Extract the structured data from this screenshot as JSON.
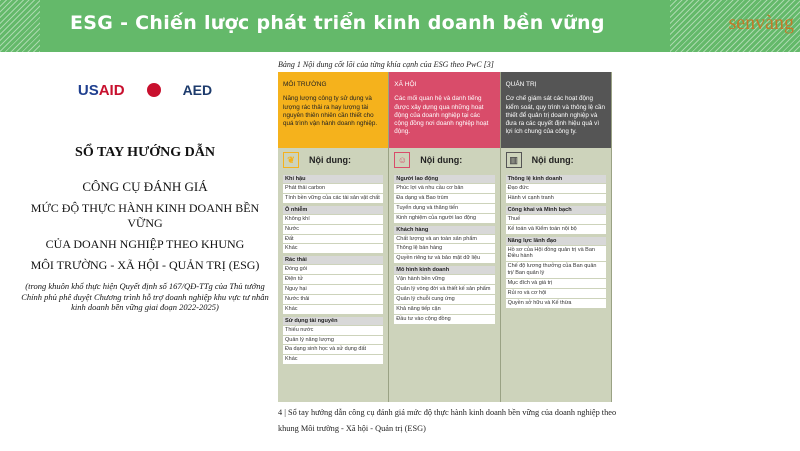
{
  "header": {
    "title": "ESG - Chiến lược phát triển kinh doanh bền vững",
    "logo": "senvàng",
    "color": "#64b96a"
  },
  "cover": {
    "logos": [
      "USAID",
      "BỘ KẾ HOẠCH VÀ ĐẦU TƯ",
      "AED"
    ],
    "title": "SỔ TAY HƯỚNG DẪN",
    "line1": "CÔNG CỤ ĐÁNH GIÁ",
    "line2": "MỨC ĐỘ THỰC HÀNH KINH DOANH BỀN VỮNG",
    "line3": "CỦA DOANH NGHIỆP THEO KHUNG",
    "line4": "MÔI TRƯỜNG - XÃ HỘI - QUẢN TRỊ (ESG)",
    "note": "(trong khuôn khổ thực hiện Quyết định số 167/QĐ-TTg của Thủ tướng Chính phủ phê duyệt Chương trình hỗ trợ doanh nghiệp khu vực tư nhân kinh doanh bền vững giai đoạn 2022-2025)"
  },
  "caption": "Bảng 1  Nội dung cốt lõi của từng khía cạnh của ESG theo PwC [3]",
  "columns": [
    {
      "title": "MÔI TRƯỜNG",
      "desc": "Năng lượng công ty sử dụng và lượng rác thải ra hay lượng tài nguyên thiên nhiên cần thiết cho quá trình vận hành doanh nghiệp.",
      "color": "#f5b21c",
      "text_color": "#222",
      "icon": "leaf-icon",
      "content_label": "Nội dung:",
      "groups": [
        {
          "name": "Khí hậu",
          "items": [
            "Phát thải carbon",
            "Tính bền vững của các tài sản vật chất"
          ]
        },
        {
          "name": "Ô nhiễm",
          "items": [
            "Không khí",
            "Nước",
            "Đất",
            "Khác"
          ]
        },
        {
          "name": "Rác thải",
          "items": [
            "Đóng gói",
            "Điện tử",
            "Nguy hại",
            "Nước thải",
            "Khác"
          ]
        },
        {
          "name": "Sử dụng tài nguyên",
          "items": [
            "Thiếu nước",
            "Quản lý năng lượng",
            "Đa dạng sinh học và sử dụng đất",
            "Khác"
          ]
        }
      ]
    },
    {
      "title": "XÃ HỘI",
      "desc": "Các mối quan hệ và danh tiếng được xây dựng qua những hoạt động của doanh nghiệp tại các cộng đồng nơi doanh nghiệp hoạt động.",
      "color": "#d94c6a",
      "text_color": "#fff",
      "icon": "people-icon",
      "content_label": "Nội dung:",
      "groups": [
        {
          "name": "Người lao động",
          "items": [
            "Phúc lợi và nhu cầu cơ bản",
            "Đa dạng và Bao trùm",
            "Tuyển dụng và thăng tiến",
            "Kinh nghiệm của người lao động"
          ]
        },
        {
          "name": "Khách hàng",
          "items": [
            "Chất lượng và an toàn sản phẩm",
            "Thông lệ bán hàng",
            "Quyền riêng tư và bảo mật dữ liệu"
          ]
        },
        {
          "name": "Mô hình kinh doanh",
          "items": [
            "Vận hành bền vững",
            "Quản lý vòng đời và thiết kế sản phẩm",
            "Quản lý chuỗi cung ứng",
            "Khả năng tiếp cận",
            "Đầu tư vào cộng đồng"
          ]
        }
      ]
    },
    {
      "title": "QUẢN TRỊ",
      "desc": "Cơ chế giám sát các hoạt động kiểm soát, quy trình và thông lệ cần thiết để quản trị doanh nghiệp và đưa ra các quyết định hiệu quả vì lợi ích chung của công ty.",
      "color": "#555555",
      "text_color": "#fff",
      "icon": "building-icon",
      "content_label": "Nội dung:",
      "groups": [
        {
          "name": "Thông lệ kinh doanh",
          "items": [
            "Đạo đức",
            "Hành vi cạnh tranh"
          ]
        },
        {
          "name": "Công khai và Minh bạch",
          "items": [
            "Thuế",
            "Kế toán và Kiểm toán nội bộ"
          ]
        },
        {
          "name": "Năng lực lãnh đạo",
          "items": [
            "Hồ sơ của Hội đồng quản trị và Ban Điều hành",
            "Chế độ lương thưởng của Ban quản trị/ Ban quản lý",
            "Mục đích và giá trị",
            "Rủi ro và cơ hội",
            "Quyền sở hữu và Kế thừa"
          ]
        }
      ]
    }
  ],
  "footer": "4 | Sổ tay hướng dẫn công cụ đánh giá mức độ thực hành kinh doanh bền vững của doanh nghiệp theo khung Môi trường - Xã hội - Quản trị (ESG)"
}
